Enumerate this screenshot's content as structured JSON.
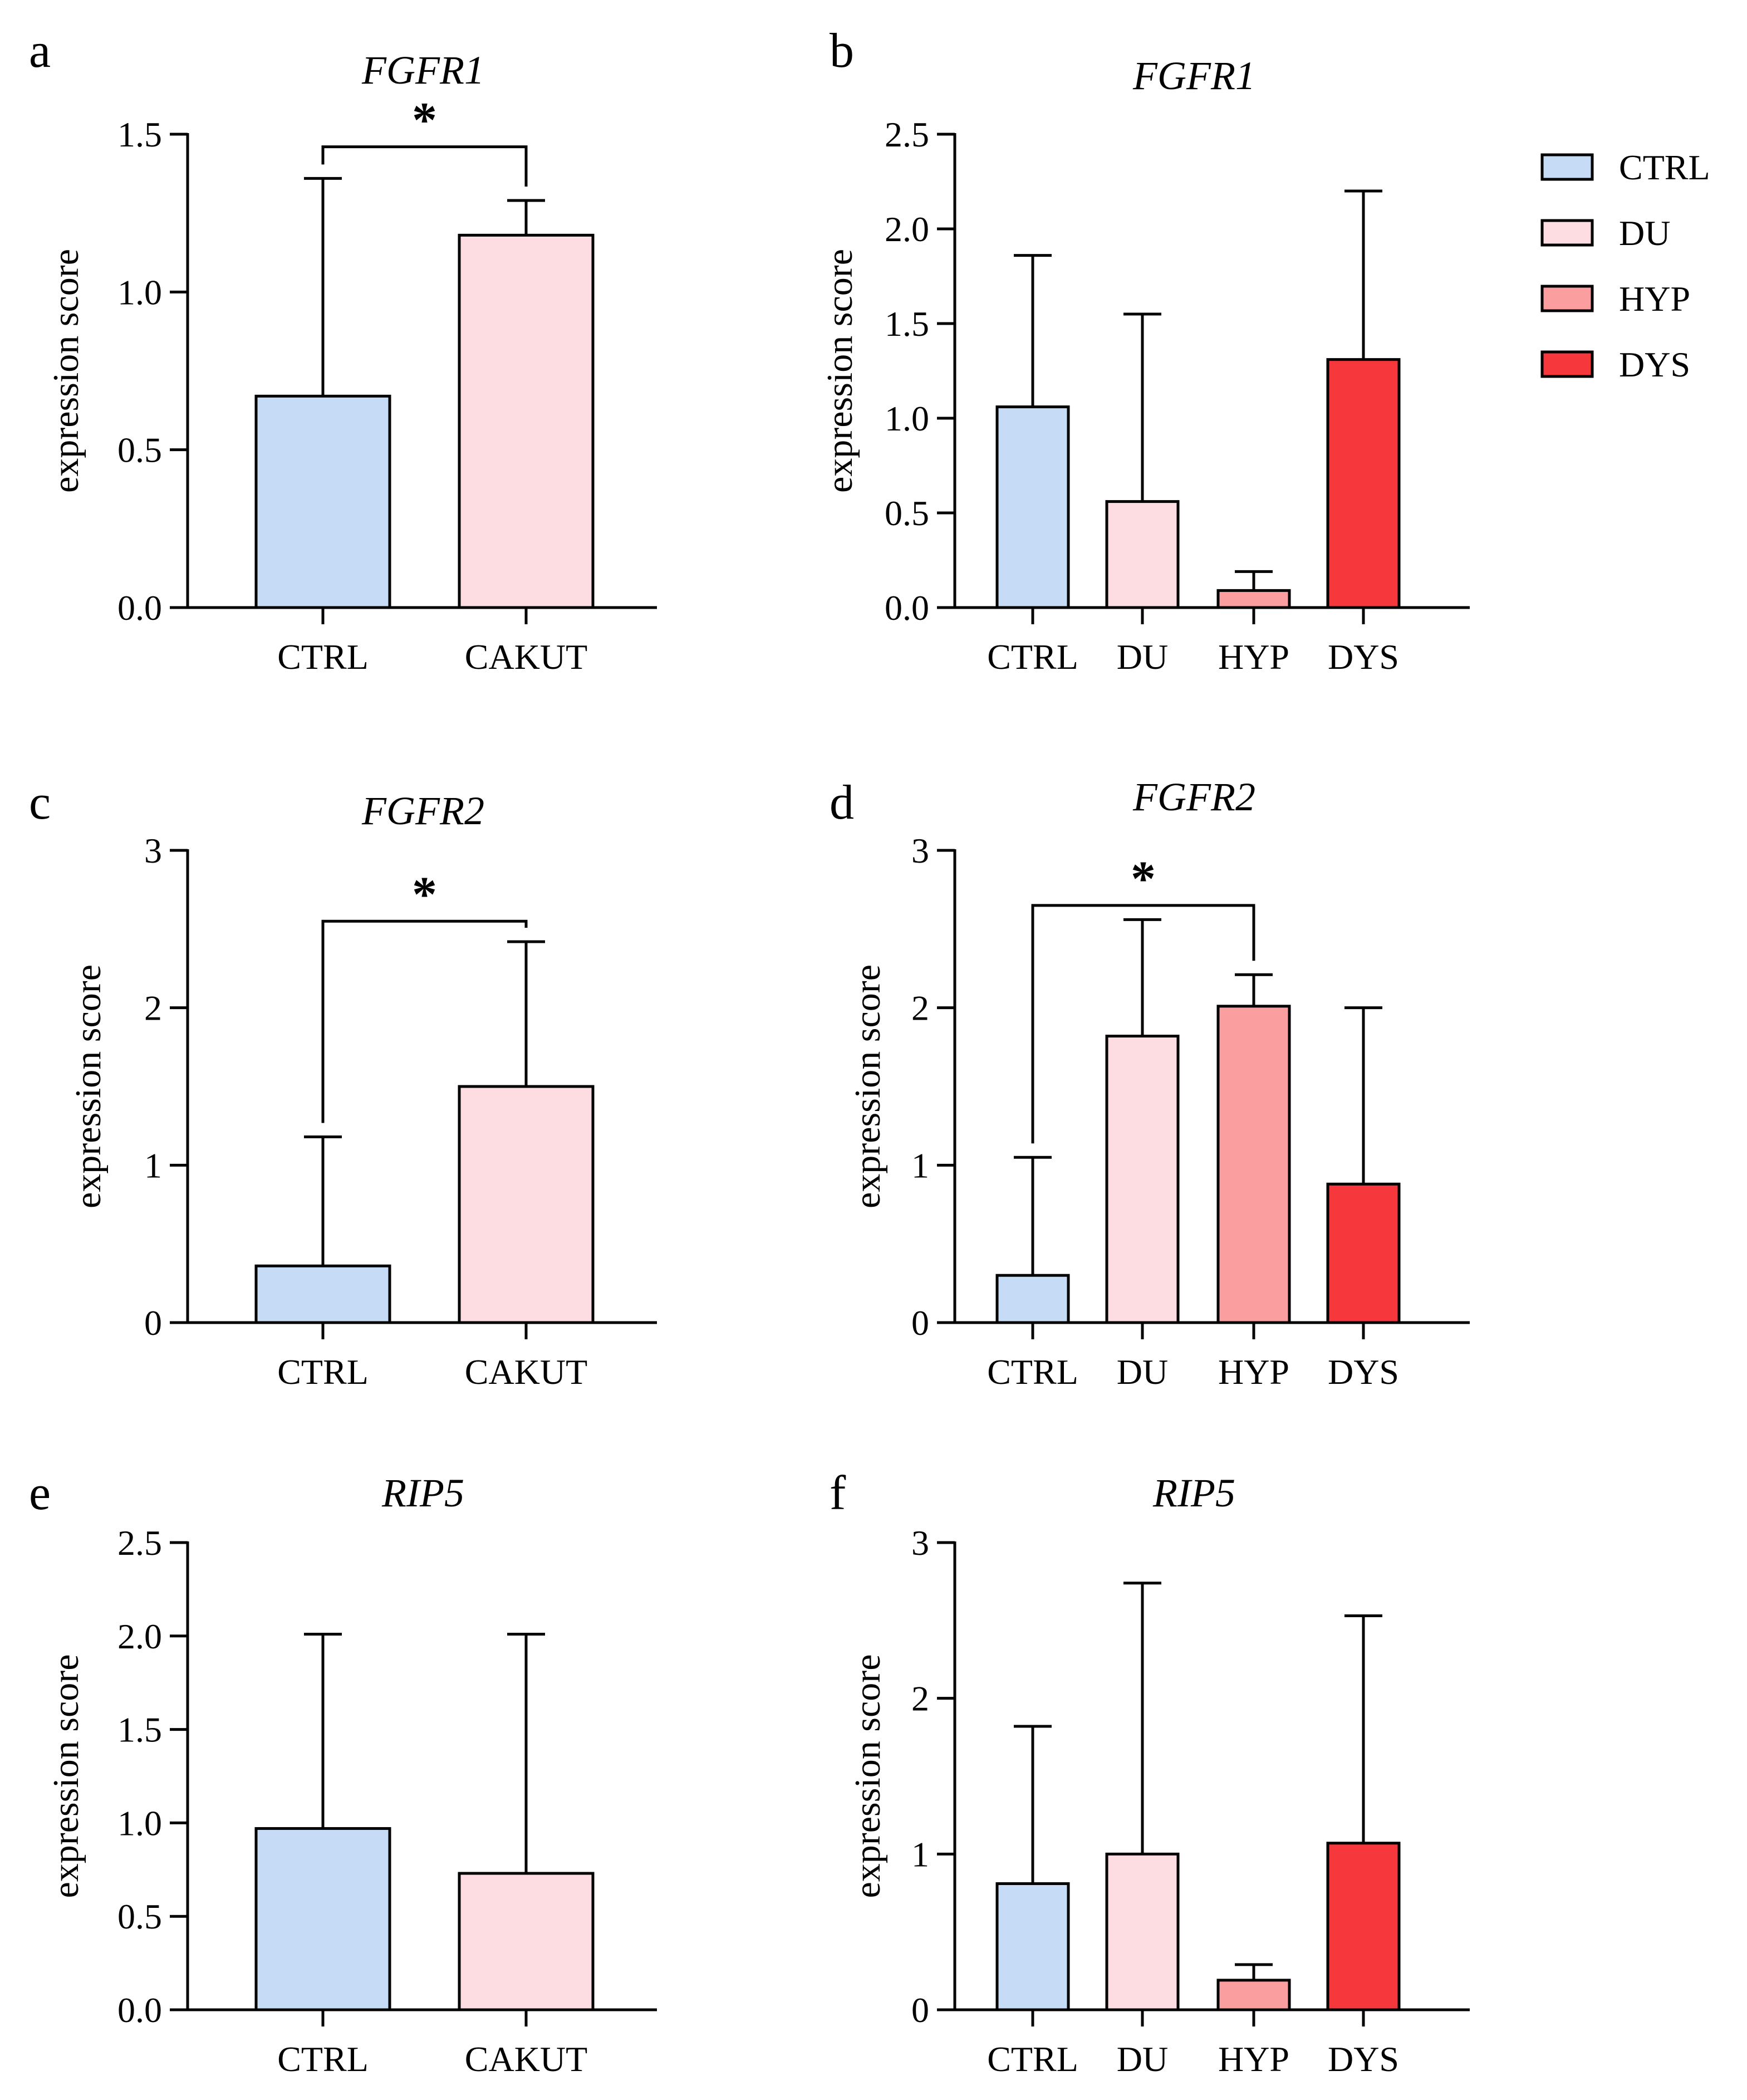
{
  "colors": {
    "CTRL": "#c6dcf6",
    "CAKUT": "#fddde1",
    "DU": "#fddde1",
    "HYP": "#fb9ea0",
    "DYS": "#f6383c",
    "axis": "#000000"
  },
  "legend": {
    "items": [
      {
        "label": "CTRL",
        "color_key": "CTRL"
      },
      {
        "label": "DU",
        "color_key": "DU"
      },
      {
        "label": "HYP",
        "color_key": "HYP"
      },
      {
        "label": "DYS",
        "color_key": "DYS"
      }
    ]
  },
  "chart_data": [
    {
      "panel": "a",
      "type": "bar",
      "title": "FGFR1",
      "ylabel": "expression score",
      "xlabel": "",
      "categories": [
        "CTRL",
        "CAKUT"
      ],
      "values": [
        0.67,
        1.18
      ],
      "errors": [
        0.69,
        0.11
      ],
      "ylim": [
        0,
        1.5
      ],
      "yticks": [
        "0.0",
        "0.5",
        "1.0",
        "1.5"
      ],
      "significance": [
        {
          "from": 0,
          "to": 1,
          "label": "*",
          "y": 1.46
        }
      ]
    },
    {
      "panel": "b",
      "type": "bar",
      "title": "FGFR1",
      "ylabel": "expression score",
      "xlabel": "",
      "categories": [
        "CTRL",
        "DU",
        "HYP",
        "DYS"
      ],
      "values": [
        1.06,
        0.56,
        0.09,
        1.31
      ],
      "errors": [
        0.8,
        0.99,
        0.1,
        0.89
      ],
      "ylim": [
        0,
        2.5
      ],
      "yticks": [
        "0.0",
        "0.5",
        "1.0",
        "1.5",
        "2.0",
        "2.5"
      ],
      "significance": []
    },
    {
      "panel": "c",
      "type": "bar",
      "title": "FGFR2",
      "ylabel": "expression score",
      "xlabel": "",
      "categories": [
        "CTRL",
        "CAKUT"
      ],
      "values": [
        0.36,
        1.5
      ],
      "errors": [
        0.82,
        0.92
      ],
      "ylim": [
        0,
        3
      ],
      "yticks": [
        "0",
        "1",
        "2",
        "3"
      ],
      "significance": [
        {
          "from": 0,
          "to": 1,
          "label": "*",
          "y": 2.55
        }
      ]
    },
    {
      "panel": "d",
      "type": "bar",
      "title": "FGFR2",
      "ylabel": "expression score",
      "xlabel": "",
      "categories": [
        "CTRL",
        "DU",
        "HYP",
        "DYS"
      ],
      "values": [
        0.3,
        1.82,
        2.01,
        0.88
      ],
      "errors": [
        0.75,
        0.74,
        0.2,
        1.12
      ],
      "ylim": [
        0,
        3
      ],
      "yticks": [
        "0",
        "1",
        "2",
        "3"
      ],
      "significance": [
        {
          "from": 0,
          "to": 2,
          "label": "*",
          "y": 2.65
        }
      ]
    },
    {
      "panel": "e",
      "type": "bar",
      "title": "RIP5",
      "ylabel": "expression score",
      "xlabel": "",
      "categories": [
        "CTRL",
        "CAKUT"
      ],
      "values": [
        0.97,
        0.73
      ],
      "errors": [
        1.04,
        1.28
      ],
      "ylim": [
        0,
        2.5
      ],
      "yticks": [
        "0.0",
        "0.5",
        "1.0",
        "1.5",
        "2.0",
        "2.5"
      ],
      "significance": []
    },
    {
      "panel": "f",
      "type": "bar",
      "title": "RIP5",
      "ylabel": "expression score",
      "xlabel": "",
      "categories": [
        "CTRL",
        "DU",
        "HYP",
        "DYS"
      ],
      "values": [
        0.81,
        1.0,
        0.19,
        1.07
      ],
      "errors": [
        1.01,
        1.74,
        0.1,
        1.46
      ],
      "ylim": [
        0,
        3
      ],
      "yticks": [
        "0",
        "1",
        "2",
        "3"
      ],
      "significance": []
    }
  ]
}
